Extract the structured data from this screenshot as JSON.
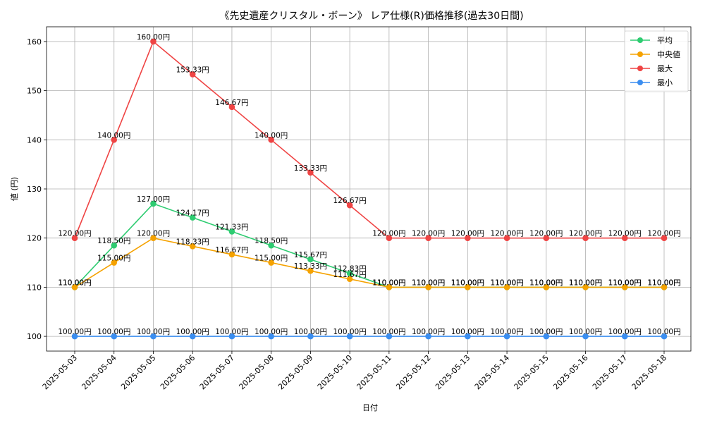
{
  "chart_data": {
    "type": "line",
    "title": "《先史遺産クリスタル・ボーン》 レア仕様(R)価格推移(過去30日間)",
    "xlabel": "日付",
    "ylabel": "値 (円)",
    "ylim": [
      97,
      163
    ],
    "yticks": [
      100,
      110,
      120,
      130,
      140,
      150,
      160
    ],
    "grid": true,
    "legend_position": "top-right",
    "value_suffix": "円",
    "x": [
      "2025-05-03",
      "2025-05-04",
      "2025-05-05",
      "2025-05-06",
      "2025-05-07",
      "2025-05-08",
      "2025-05-09",
      "2025-05-10",
      "2025-05-11",
      "2025-05-12",
      "2025-05-13",
      "2025-05-14",
      "2025-05-15",
      "2025-05-16",
      "2025-05-17",
      "2025-05-18"
    ],
    "series": [
      {
        "name": "平均",
        "color": "#2ecc71",
        "values": [
          110.0,
          118.5,
          127.0,
          124.17,
          121.33,
          118.5,
          115.67,
          112.83,
          110.0,
          110.0,
          110.0,
          110.0,
          110.0,
          110.0,
          110.0,
          110.0
        ]
      },
      {
        "name": "中央値",
        "color": "#f5a200",
        "values": [
          110.0,
          115.0,
          120.0,
          118.33,
          116.67,
          115.0,
          113.33,
          111.67,
          110.0,
          110.0,
          110.0,
          110.0,
          110.0,
          110.0,
          110.0,
          110.0
        ]
      },
      {
        "name": "最大",
        "color": "#ef4444",
        "values": [
          120.0,
          140.0,
          160.0,
          153.33,
          146.67,
          140.0,
          133.33,
          126.67,
          120.0,
          120.0,
          120.0,
          120.0,
          120.0,
          120.0,
          120.0,
          120.0
        ]
      },
      {
        "name": "最小",
        "color": "#3b8ef0",
        "values": [
          100.0,
          100.0,
          100.0,
          100.0,
          100.0,
          100.0,
          100.0,
          100.0,
          100.0,
          100.0,
          100.0,
          100.0,
          100.0,
          100.0,
          100.0,
          100.0
        ]
      }
    ]
  }
}
